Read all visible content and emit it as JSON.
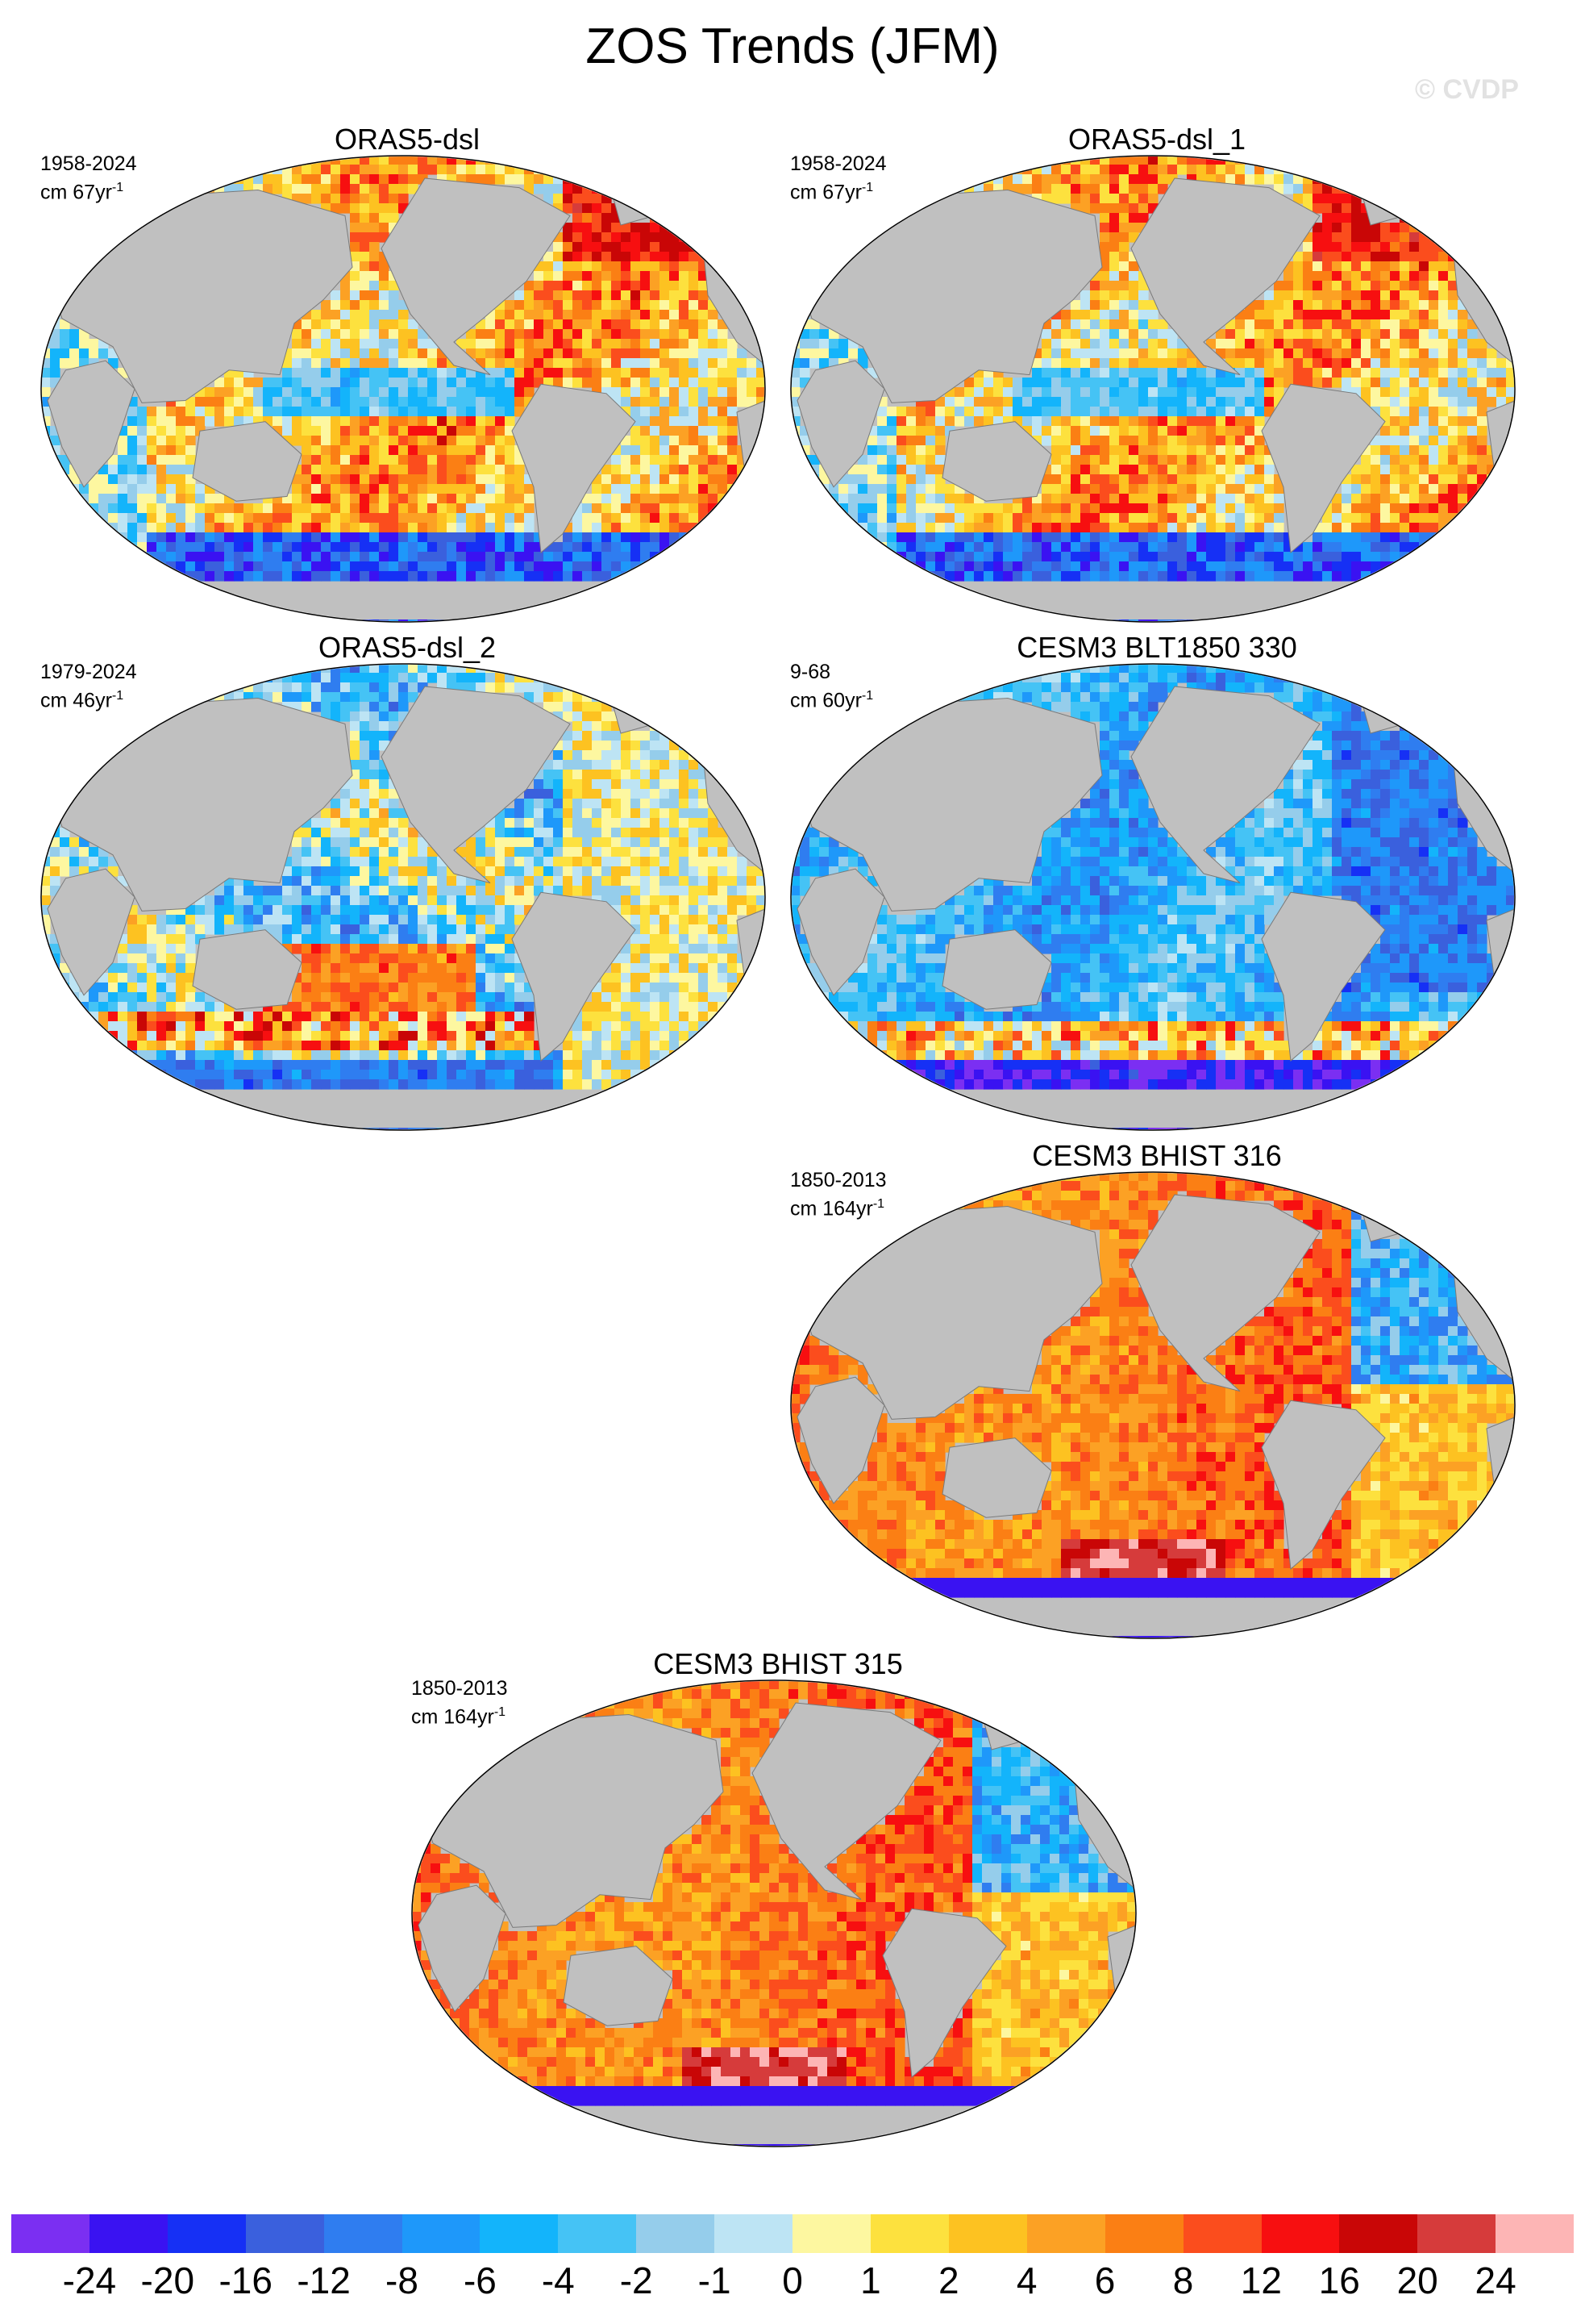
{
  "figure": {
    "title": "ZOS Trends (JFM)",
    "watermark": "© CVDP"
  },
  "chart_data": {
    "type": "heatmap",
    "projection": "robinson",
    "panels": [
      {
        "title": "ORAS5-dsl",
        "period": "1958-2024",
        "units": "cm 67yr",
        "units_sup": "-1",
        "palette": "mixed"
      },
      {
        "title": "ORAS5-dsl_1",
        "period": "1958-2024",
        "units": "cm 67yr",
        "units_sup": "-1",
        "palette": "mixed"
      },
      {
        "title": "ORAS5-dsl_2",
        "period": "1979-2024",
        "units": "cm 46yr",
        "units_sup": "-1",
        "palette": "mixed_cool"
      },
      {
        "title": "CESM3 BLT1850 330",
        "period": "9-68",
        "units": "cm 60yr",
        "units_sup": "-1",
        "palette": "cool"
      },
      {
        "title": "CESM3 BHIST 316",
        "period": "1850-2013",
        "units": "cm 164yr",
        "units_sup": "-1",
        "palette": "warm"
      },
      {
        "title": "CESM3 BHIST 315",
        "period": "1850-2013",
        "units": "cm 164yr",
        "units_sup": "-1",
        "palette": "warm"
      }
    ],
    "colorbar": {
      "labels": [
        "-24",
        "-20",
        "-16",
        "-12",
        "-8",
        "-6",
        "-4",
        "-2",
        "-1",
        "0",
        "1",
        "2",
        "4",
        "6",
        "8",
        "12",
        "16",
        "20",
        "24"
      ],
      "colors": [
        "#7b2ff2",
        "#3a12f2",
        "#1630f5",
        "#3a60dd",
        "#2f7df0",
        "#1e98fa",
        "#13b4fb",
        "#45c3f5",
        "#95cdeb",
        "#bde4f4",
        "#fdf7a0",
        "#fde13e",
        "#fdc221",
        "#fca124",
        "#fb7f14",
        "#fb4d1d",
        "#f70f10",
        "#c90606",
        "#d63b3b",
        "#fdb5b5"
      ]
    }
  }
}
